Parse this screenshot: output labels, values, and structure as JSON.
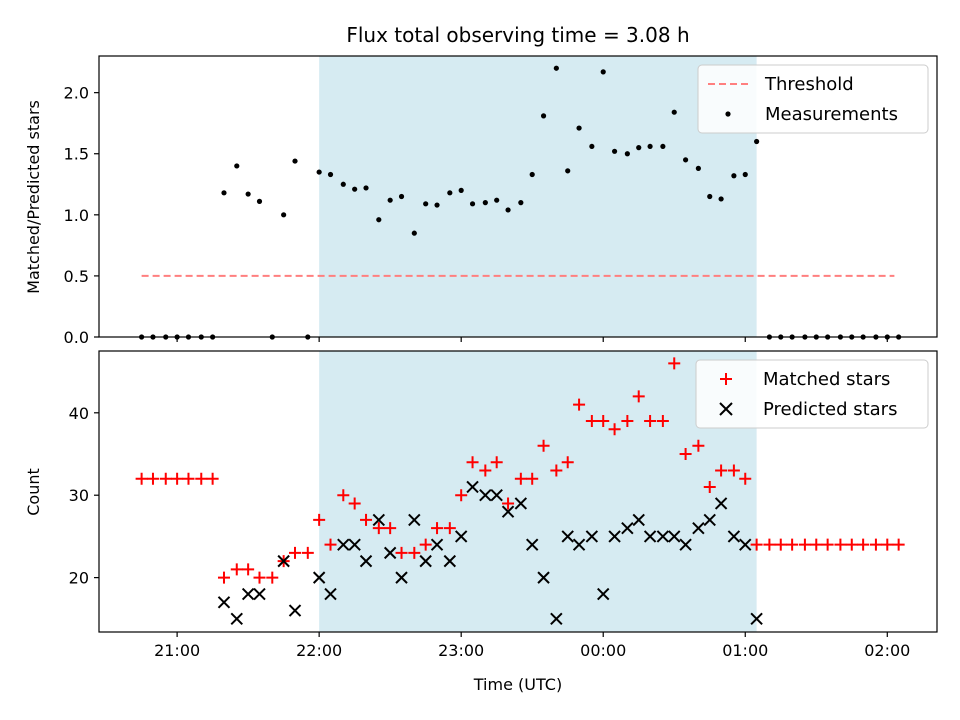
{
  "chart_data": {
    "title": "Flux total observing time = 3.08 h",
    "xlabel": "Time (UTC)",
    "x_ticks": [
      "21:00",
      "22:00",
      "23:00",
      "00:00",
      "01:00",
      "02:00"
    ],
    "x_tick_hours": [
      21,
      22,
      23,
      24,
      25,
      26
    ],
    "x_range": [
      20.45,
      26.35
    ],
    "shaded_interval": [
      22.0,
      25.08
    ],
    "colors": {
      "threshold": "#ff7f7f",
      "shade": "#add8e6",
      "matched": "#ff0000",
      "predicted": "#000000",
      "measurements": "#000000"
    },
    "panels": [
      {
        "type": "scatter",
        "ylabel": "Matched/Predicted stars",
        "ylim": [
          0,
          2.3
        ],
        "y_ticks": [
          "0.0",
          "0.5",
          "1.0",
          "1.5",
          "2.0"
        ],
        "y_tick_values": [
          0,
          0.5,
          1.0,
          1.5,
          2.0
        ],
        "legend": [
          "Threshold",
          "Measurements"
        ],
        "legend_loc": "upper right",
        "threshold": {
          "value": 0.5,
          "x_range": [
            20.75,
            26.05
          ]
        },
        "measurements": {
          "x": [
            20.75,
            20.83,
            20.92,
            21.0,
            21.08,
            21.17,
            21.25,
            21.33,
            21.42,
            21.5,
            21.58,
            21.67,
            21.75,
            21.83,
            21.92,
            22.0,
            22.08,
            22.17,
            22.25,
            22.33,
            22.42,
            22.5,
            22.58,
            22.67,
            22.75,
            22.83,
            22.92,
            23.0,
            23.08,
            23.17,
            23.25,
            23.33,
            23.42,
            23.5,
            23.58,
            23.67,
            23.75,
            23.83,
            23.92,
            24.0,
            24.08,
            24.17,
            24.25,
            24.33,
            24.42,
            24.5,
            24.58,
            24.67,
            24.75,
            24.83,
            24.92,
            25.0,
            25.08,
            25.17,
            25.25,
            25.33,
            25.42,
            25.5,
            25.58,
            25.67,
            25.75,
            25.83,
            25.92,
            26.0,
            26.08
          ],
          "y": [
            0,
            0,
            0,
            0,
            0,
            0,
            0,
            1.18,
            1.4,
            1.17,
            1.11,
            0,
            1.0,
            1.44,
            0,
            1.35,
            1.33,
            1.25,
            1.21,
            1.22,
            0.96,
            1.12,
            1.15,
            0.85,
            1.09,
            1.08,
            1.18,
            1.2,
            1.09,
            1.1,
            1.12,
            1.04,
            1.1,
            1.33,
            1.81,
            2.2,
            1.36,
            1.71,
            1.56,
            2.17,
            1.52,
            1.5,
            1.55,
            1.56,
            1.56,
            1.84,
            1.45,
            1.38,
            1.15,
            1.13,
            1.32,
            1.33,
            1.6,
            0,
            0,
            0,
            0,
            0,
            0,
            0,
            0,
            0,
            0,
            0,
            0
          ]
        }
      },
      {
        "type": "scatter",
        "ylabel": "Count",
        "ylim": [
          13.4,
          47.5
        ],
        "y_ticks": [
          "20",
          "30",
          "40"
        ],
        "y_tick_values": [
          20,
          30,
          40
        ],
        "legend": [
          "Matched stars",
          "Predicted stars"
        ],
        "legend_loc": "upper right",
        "series": [
          {
            "name": "Matched stars",
            "marker": "+",
            "x": [
              20.75,
              20.83,
              20.92,
              21.0,
              21.08,
              21.17,
              21.25,
              21.33,
              21.42,
              21.5,
              21.58,
              21.67,
              21.75,
              21.83,
              21.92,
              22.0,
              22.08,
              22.17,
              22.25,
              22.33,
              22.42,
              22.5,
              22.58,
              22.67,
              22.75,
              22.83,
              22.92,
              23.0,
              23.08,
              23.17,
              23.25,
              23.33,
              23.42,
              23.5,
              23.58,
              23.67,
              23.75,
              23.83,
              23.92,
              24.0,
              24.08,
              24.17,
              24.25,
              24.33,
              24.42,
              24.5,
              24.58,
              24.67,
              24.75,
              24.83,
              24.92,
              25.0,
              25.08,
              25.17,
              25.25,
              25.33,
              25.42,
              25.5,
              25.58,
              25.67,
              25.75,
              25.83,
              25.92,
              26.0,
              26.08
            ],
            "y": [
              32,
              32,
              32,
              32,
              32,
              32,
              32,
              20,
              21,
              21,
              20,
              20,
              22,
              23,
              23,
              27,
              24,
              30,
              29,
              27,
              26,
              26,
              23,
              23,
              24,
              26,
              26,
              30,
              34,
              33,
              34,
              29,
              32,
              32,
              36,
              33,
              34,
              41,
              39,
              39,
              38,
              39,
              42,
              39,
              39,
              46,
              35,
              36,
              31,
              33,
              33,
              32,
              24,
              24,
              24,
              24,
              24,
              24,
              24,
              24,
              24,
              24,
              24,
              24,
              24
            ]
          },
          {
            "name": "Predicted stars",
            "marker": "x",
            "x": [
              21.33,
              21.42,
              21.5,
              21.58,
              21.75,
              21.83,
              22.0,
              22.08,
              22.17,
              22.25,
              22.33,
              22.42,
              22.5,
              22.58,
              22.67,
              22.75,
              22.83,
              22.92,
              23.0,
              23.08,
              23.17,
              23.25,
              23.33,
              23.42,
              23.5,
              23.58,
              23.67,
              23.75,
              23.83,
              23.92,
              24.0,
              24.08,
              24.17,
              24.25,
              24.33,
              24.42,
              24.5,
              24.58,
              24.67,
              24.75,
              24.83,
              24.92,
              25.0,
              25.08
            ],
            "y": [
              17,
              15,
              18,
              18,
              22,
              16,
              20,
              18,
              24,
              24,
              22,
              27,
              23,
              20,
              27,
              22,
              24,
              22,
              25,
              31,
              30,
              30,
              28,
              29,
              24,
              20,
              15,
              25,
              24,
              25,
              18,
              25,
              26,
              27,
              25,
              25,
              25,
              24,
              26,
              27,
              29,
              25,
              24,
              15
            ]
          }
        ]
      }
    ]
  }
}
